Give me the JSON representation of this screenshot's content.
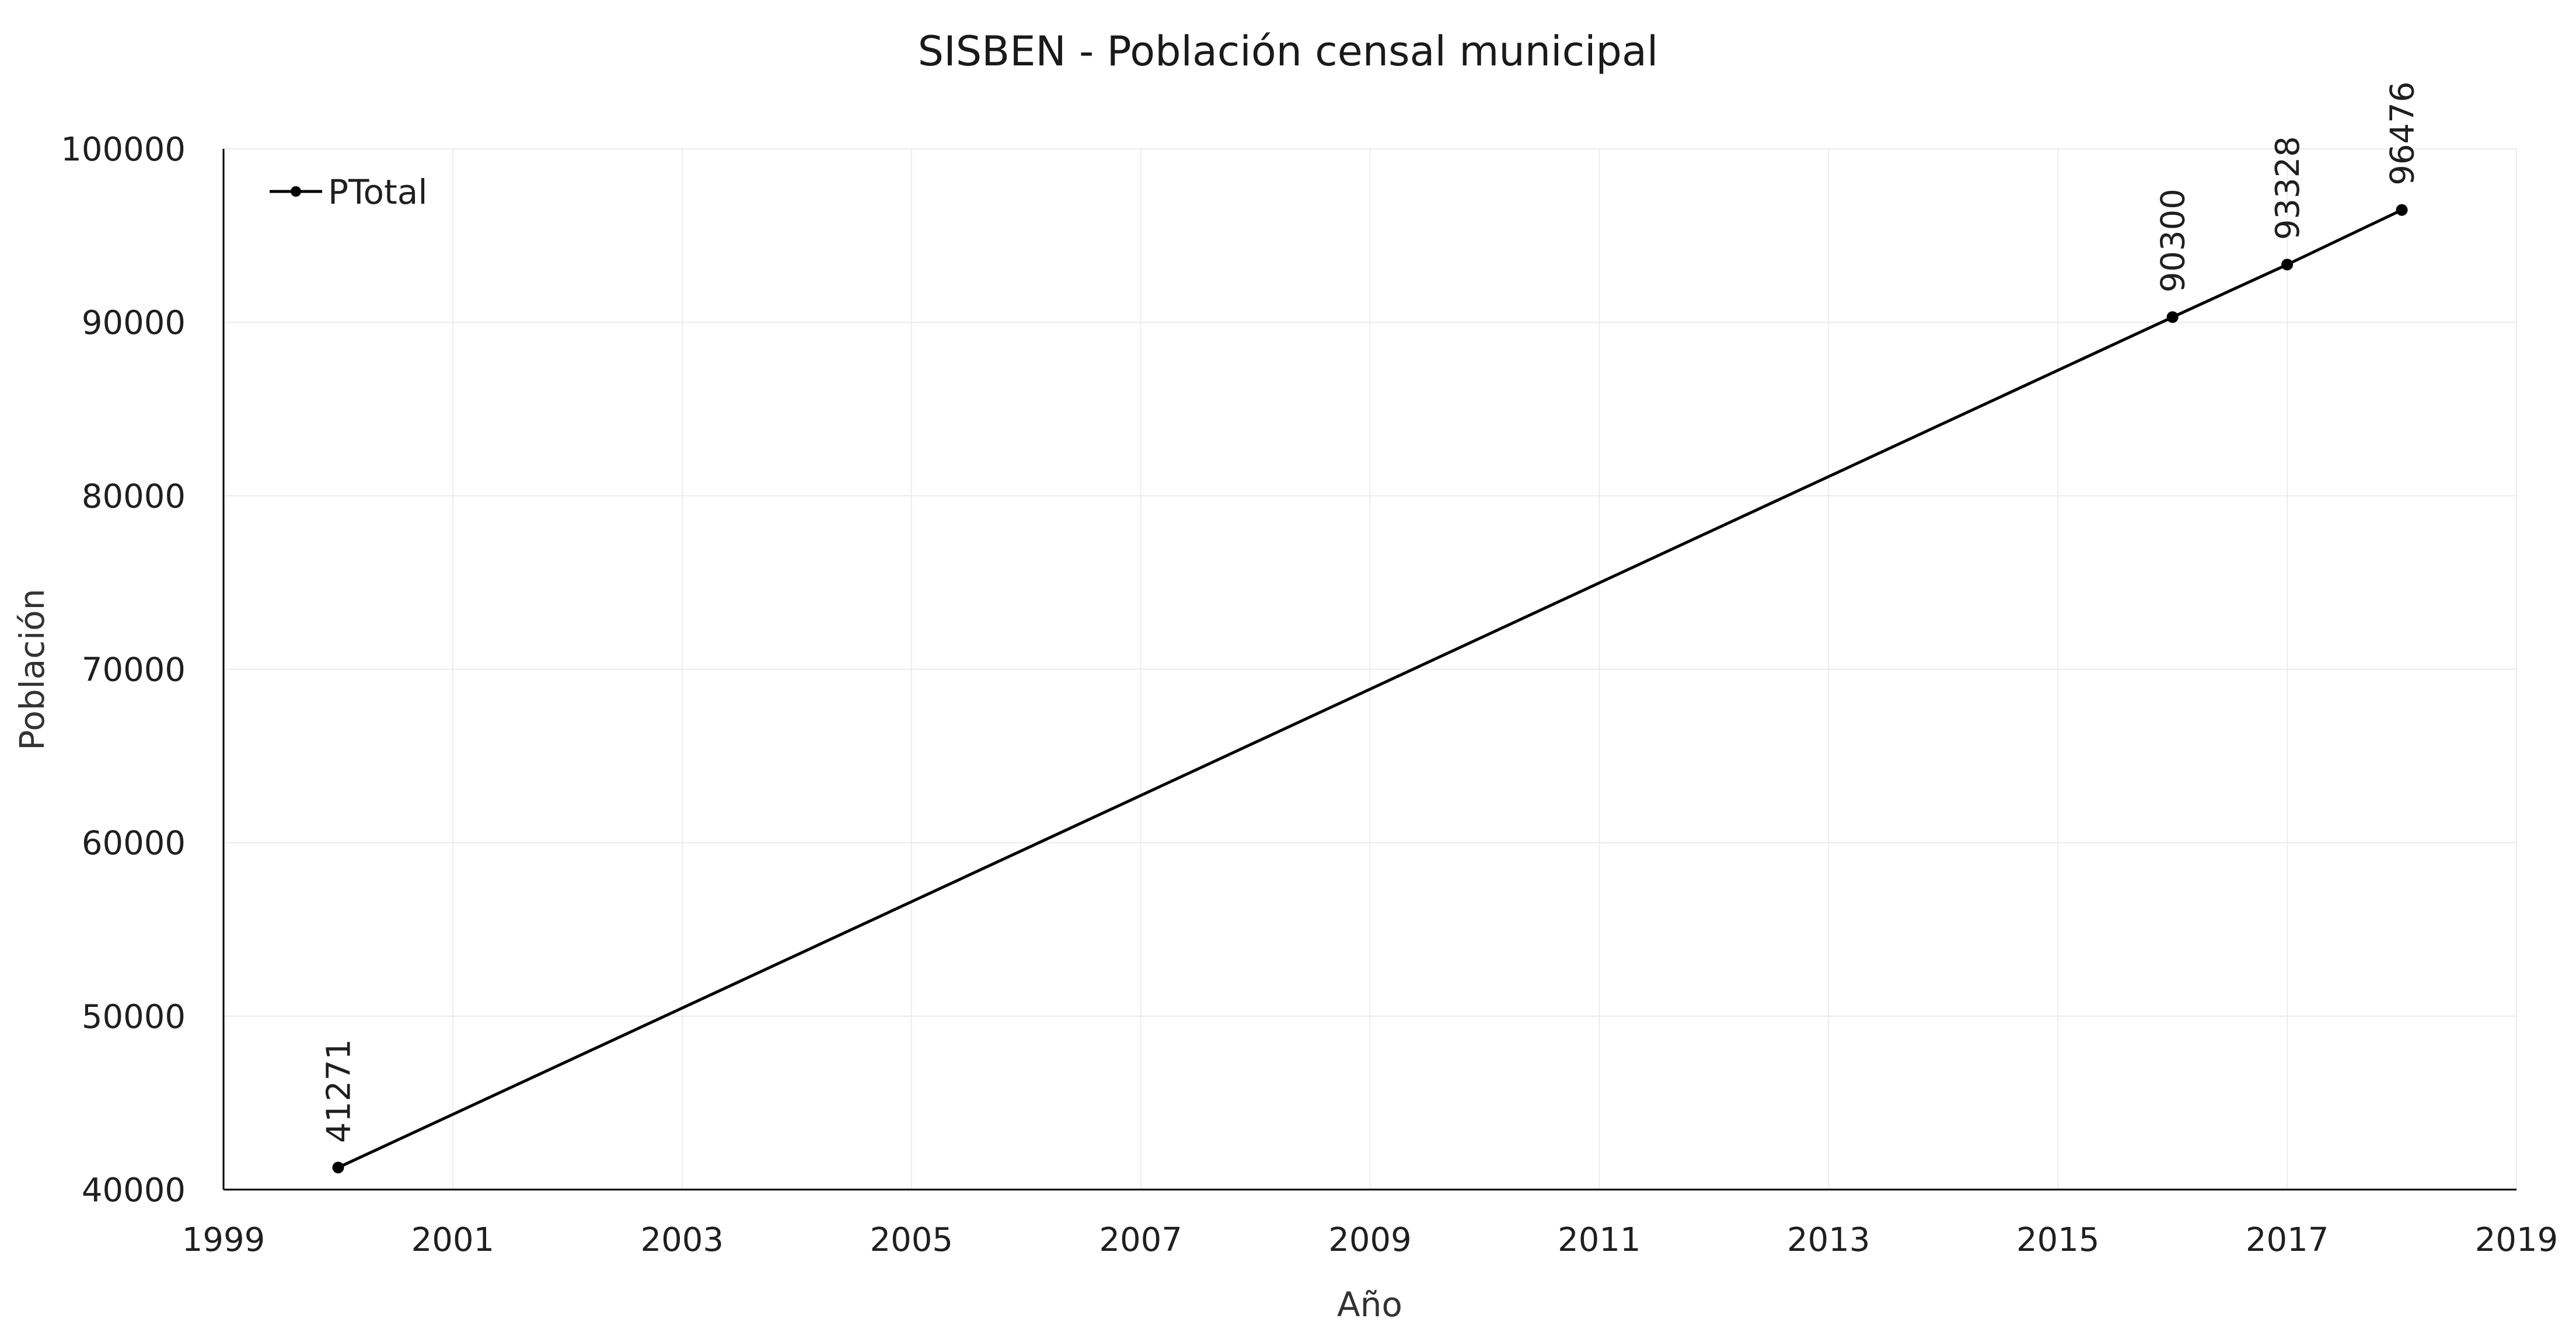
{
  "chart_data": {
    "type": "line",
    "title": "SISBEN - Población censal municipal",
    "xlabel": "Año",
    "ylabel": "Población",
    "xlim": [
      1999,
      2019
    ],
    "ylim": [
      40000,
      100000
    ],
    "xticks": [
      "1999",
      "2001",
      "2003",
      "2005",
      "2007",
      "2009",
      "2011",
      "2013",
      "2015",
      "2017",
      "2019"
    ],
    "yticks": [
      "40000",
      "50000",
      "60000",
      "70000",
      "80000",
      "90000",
      "100000"
    ],
    "grid": true,
    "legend_position": "top-left",
    "series": [
      {
        "name": "PTotal",
        "color": "#000000",
        "x": [
          2000,
          2016,
          2017,
          2018
        ],
        "values": [
          41271,
          90300,
          93328,
          96476
        ],
        "labels": [
          "41271",
          "90300",
          "93328",
          "96476"
        ]
      }
    ]
  }
}
